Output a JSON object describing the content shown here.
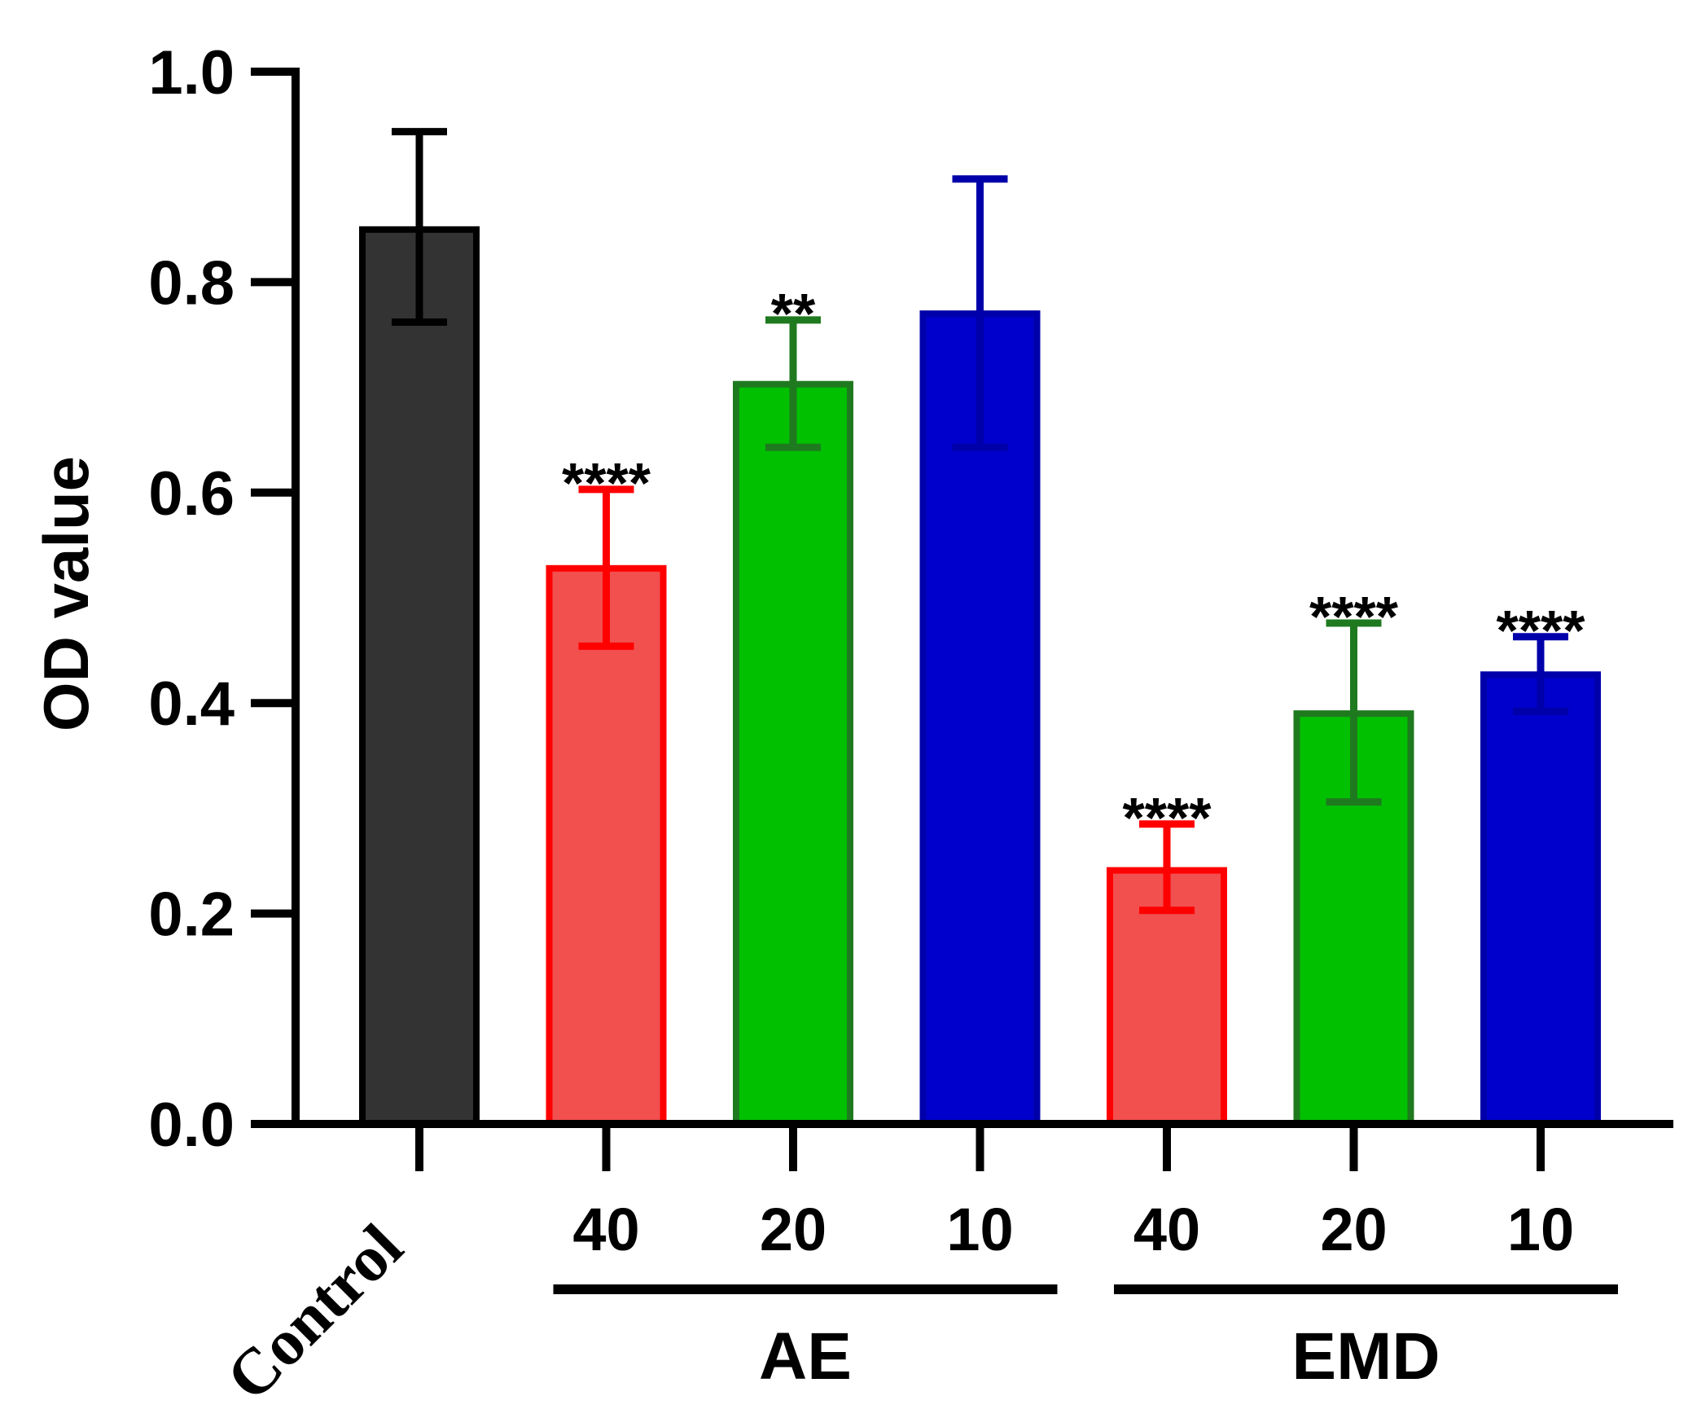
{
  "chart_data": {
    "type": "bar",
    "title": "",
    "ylabel": "OD value",
    "xlabel": "",
    "ylim": [
      0,
      1.0
    ],
    "yticks": [
      "0.0",
      "0.2",
      "0.4",
      "0.6",
      "0.8",
      "1.0"
    ],
    "categories": [
      "Control",
      "40",
      "20",
      "10",
      "40",
      "20",
      "10"
    ],
    "groups": [
      {
        "name": "AE",
        "members": [
          1,
          2,
          3
        ]
      },
      {
        "name": "EMD",
        "members": [
          4,
          5,
          6
        ]
      }
    ],
    "bars": [
      {
        "label": "Control",
        "group": "",
        "value": 0.85,
        "error_low": 0.762,
        "error_high": 0.943,
        "significance": "",
        "fill": "#333333",
        "stroke": "#000000"
      },
      {
        "label": "40",
        "group": "AE",
        "value": 0.528,
        "error_low": 0.454,
        "error_high": 0.603,
        "significance": "****",
        "fill": "#f24f4f",
        "stroke": "#ff0000"
      },
      {
        "label": "20",
        "group": "AE",
        "value": 0.703,
        "error_low": 0.643,
        "error_high": 0.764,
        "significance": "**",
        "fill": "#00c000",
        "stroke": "#1f7a1f"
      },
      {
        "label": "10",
        "group": "AE",
        "value": 0.77,
        "error_low": 0.643,
        "error_high": 0.898,
        "significance": "",
        "fill": "#0000cc",
        "stroke": "#0000aa"
      },
      {
        "label": "40",
        "group": "EMD",
        "value": 0.241,
        "error_low": 0.203,
        "error_high": 0.285,
        "significance": "****",
        "fill": "#f24f4f",
        "stroke": "#ff0000"
      },
      {
        "label": "20",
        "group": "EMD",
        "value": 0.39,
        "error_low": 0.306,
        "error_high": 0.476,
        "significance": "****",
        "fill": "#00c000",
        "stroke": "#1f7a1f"
      },
      {
        "label": "10",
        "group": "EMD",
        "value": 0.427,
        "error_low": 0.392,
        "error_high": 0.463,
        "significance": "****",
        "fill": "#0000cc",
        "stroke": "#0000aa"
      }
    ]
  }
}
